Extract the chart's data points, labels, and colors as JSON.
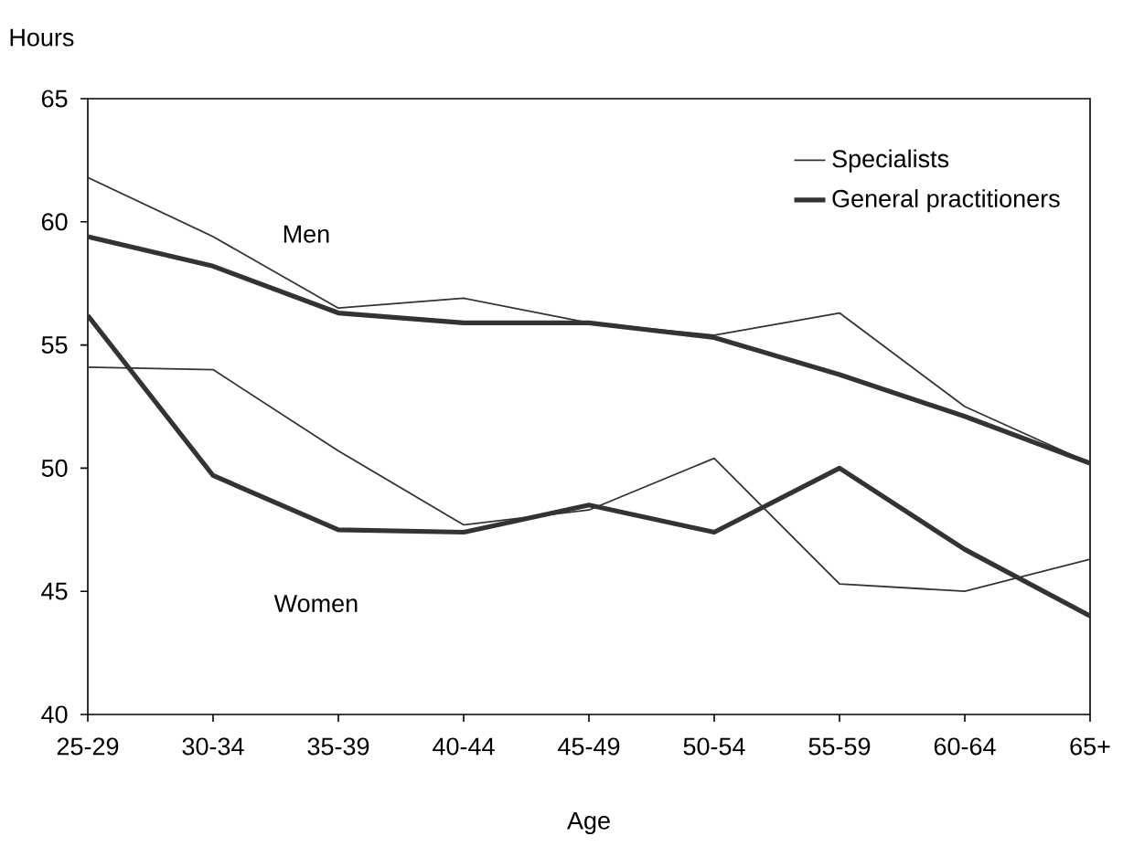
{
  "chart_data": {
    "type": "line",
    "xlabel": "Age",
    "ylabel": "Hours",
    "categories": [
      "25-29",
      "30-34",
      "35-39",
      "40-44",
      "45-49",
      "50-54",
      "55-59",
      "60-64",
      "65+"
    ],
    "series": [
      {
        "name": "Specialists",
        "color": "#333333",
        "values": [
          61.8,
          59.4,
          56.5,
          56.9,
          55.9,
          55.4,
          56.3,
          52.5,
          50.2
        ]
      },
      {
        "name": "General practitioners",
        "color": "#333333",
        "values": [
          59.4,
          58.2,
          56.3,
          55.9,
          55.9,
          55.3,
          53.8,
          52.1,
          50.2
        ]
      },
      {
        "color": "#333333",
        "values": [
          54.1,
          54.0,
          50.7,
          47.7,
          48.3,
          50.4,
          45.3,
          45.0,
          46.3
        ]
      },
      {
        "color": "#333333",
        "values": [
          56.2,
          49.7,
          47.5,
          47.4,
          48.5,
          47.4,
          50.0,
          46.7,
          44.0
        ]
      }
    ],
    "ylim": [
      40,
      65
    ],
    "yticks": [
      40,
      45,
      50,
      55,
      60,
      65
    ],
    "annotations": [
      "Men",
      "Women"
    ],
    "legend": "top right",
    "grid": false,
    "marker": "none",
    "line_style": "solid"
  }
}
